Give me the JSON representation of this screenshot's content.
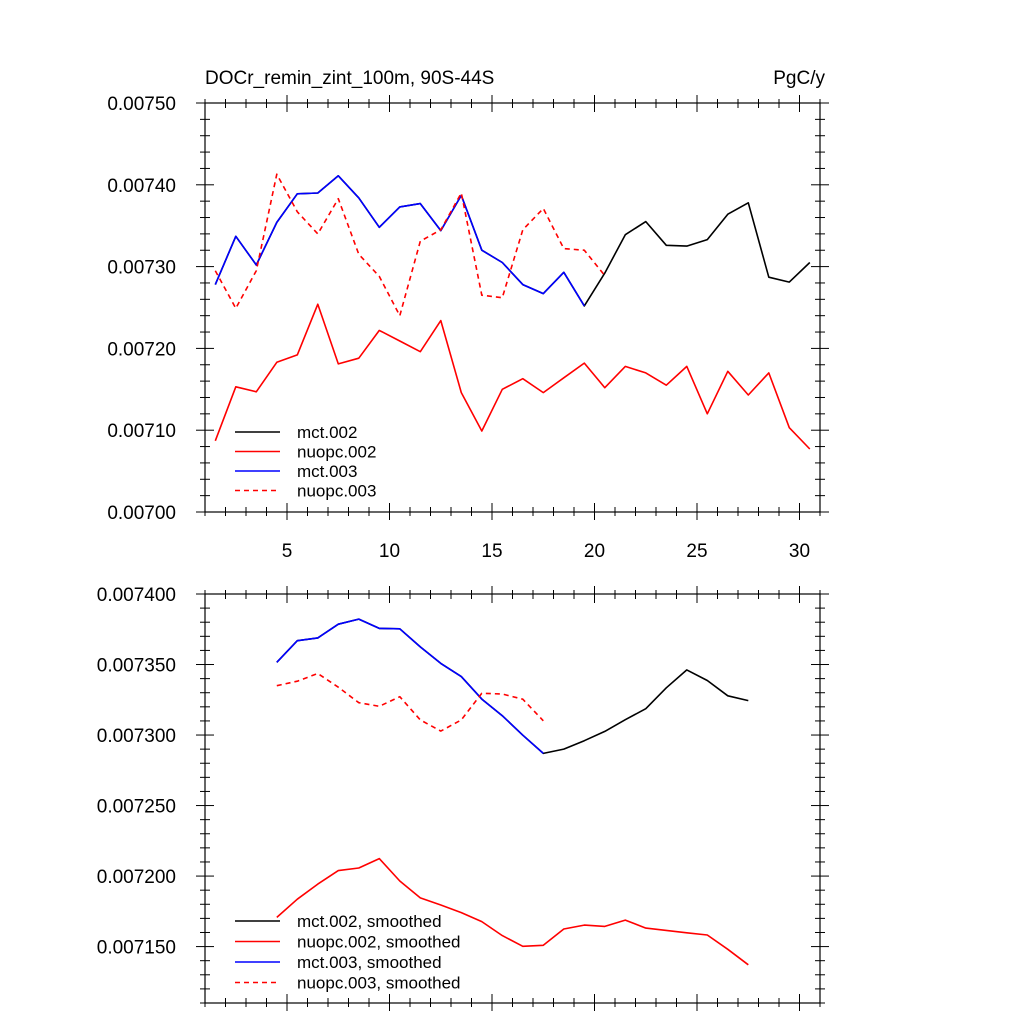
{
  "figure": {
    "title_left": "DOCr_remin_zint_100m, 90S-44S",
    "title_right": "PgC/y"
  },
  "chart_data": [
    {
      "type": "line",
      "title": "DOCr_remin_zint_100m, 90S-44S",
      "units": "PgC/y",
      "xlim": [
        1,
        31
      ],
      "ylim": [
        0.007,
        0.0075
      ],
      "x_ticks": [
        5,
        10,
        15,
        20,
        25,
        30
      ],
      "x_tick_labels": [
        "5",
        "10",
        "15",
        "20",
        "25",
        "30"
      ],
      "y_ticks": [
        0.007,
        0.0071,
        0.0072,
        0.0073,
        0.0074,
        0.0075
      ],
      "y_tick_labels": [
        "0.00700",
        "0.00710",
        "0.00720",
        "0.00730",
        "0.00740",
        "0.00750"
      ],
      "legend_position": "bottom-left",
      "series": [
        {
          "name": "mct.002",
          "color": "#000000",
          "dash": "solid",
          "x": [
            1.5,
            2.5,
            3.5,
            4.5,
            5.5,
            6.5,
            7.5,
            8.5,
            9.5,
            10.5,
            11.5,
            12.5,
            13.5,
            14.5,
            15.5,
            16.5,
            17.5,
            18.5,
            19.5,
            20.5,
            21.5,
            22.5,
            23.5,
            24.5,
            25.5,
            26.5,
            27.5,
            28.5,
            29.5,
            30.5
          ],
          "y": [
            0.007278,
            0.007337,
            0.007302,
            0.007354,
            0.007389,
            0.00739,
            0.007411,
            0.007384,
            0.007348,
            0.007373,
            0.007377,
            0.007344,
            0.007387,
            0.00732,
            0.007305,
            0.007278,
            0.007267,
            0.007293,
            0.007252,
            0.007292,
            0.007339,
            0.007355,
            0.007326,
            0.007325,
            0.007333,
            0.007364,
            0.007378,
            0.007287,
            0.007281,
            0.007305
          ]
        },
        {
          "name": "nuopc.002",
          "color": "#ff0000",
          "dash": "solid",
          "x": [
            1.5,
            2.5,
            3.5,
            4.5,
            5.5,
            6.5,
            7.5,
            8.5,
            9.5,
            10.5,
            11.5,
            12.5,
            13.5,
            14.5,
            15.5,
            16.5,
            17.5,
            18.5,
            19.5,
            20.5,
            21.5,
            22.5,
            23.5,
            24.5,
            25.5,
            26.5,
            27.5,
            28.5,
            29.5,
            30.5
          ],
          "y": [
            0.007087,
            0.007153,
            0.007147,
            0.007183,
            0.007192,
            0.007254,
            0.007181,
            0.007188,
            0.007222,
            0.007209,
            0.007196,
            0.007234,
            0.007146,
            0.007099,
            0.00715,
            0.007163,
            0.007146,
            0.007164,
            0.007182,
            0.007152,
            0.007178,
            0.00717,
            0.007155,
            0.007178,
            0.00712,
            0.007172,
            0.007143,
            0.00717,
            0.007103,
            0.007077
          ]
        },
        {
          "name": "mct.003",
          "color": "#0000ff",
          "dash": "solid",
          "x": [
            1.5,
            2.5,
            3.5,
            4.5,
            5.5,
            6.5,
            7.5,
            8.5,
            9.5,
            10.5,
            11.5,
            12.5,
            13.5,
            14.5,
            15.5,
            16.5,
            17.5,
            18.5,
            19.5
          ],
          "y": [
            0.007278,
            0.007337,
            0.007302,
            0.007354,
            0.007389,
            0.00739,
            0.007411,
            0.007384,
            0.007348,
            0.007373,
            0.007377,
            0.007344,
            0.007387,
            0.00732,
            0.007305,
            0.007278,
            0.007267,
            0.007293,
            0.007252
          ]
        },
        {
          "name": "nuopc.003",
          "color": "#ff0000",
          "dash": "dashed",
          "x": [
            1.5,
            2.5,
            3.5,
            4.5,
            5.5,
            6.5,
            7.5,
            8.5,
            9.5,
            10.5,
            11.5,
            12.5,
            13.5,
            14.5,
            15.5,
            16.5,
            17.5,
            18.5,
            19.5,
            20.5
          ],
          "y": [
            0.007295,
            0.007249,
            0.007295,
            0.007413,
            0.007367,
            0.00734,
            0.007383,
            0.007315,
            0.007288,
            0.00724,
            0.007331,
            0.007345,
            0.00739,
            0.007265,
            0.007262,
            0.007345,
            0.007371,
            0.007322,
            0.00732,
            0.007289
          ]
        }
      ]
    },
    {
      "type": "line",
      "xlim": [
        1,
        31
      ],
      "ylim": [
        0.00711,
        0.0074
      ],
      "x_ticks": [
        5,
        10,
        15,
        20,
        25,
        30
      ],
      "y_ticks": [
        0.00715,
        0.0072,
        0.00725,
        0.0073,
        0.00735,
        0.0074
      ],
      "y_tick_labels": [
        "0.007150",
        "0.007200",
        "0.007250",
        "0.007300",
        "0.007350",
        "0.007400"
      ],
      "legend_position": "bottom-left",
      "series": [
        {
          "name": "mct.002, smoothed",
          "color": "#000000",
          "dash": "solid",
          "x": [
            4.5,
            5.5,
            6.5,
            7.5,
            8.5,
            9.5,
            10.5,
            11.5,
            12.5,
            13.5,
            14.5,
            15.5,
            16.5,
            17.5,
            18.5,
            19.5,
            20.5,
            21.5,
            22.5,
            23.5,
            24.5,
            25.5,
            26.5,
            27.5
          ],
          "y": [
            0.0073516,
            0.0073669,
            0.0073689,
            0.0073786,
            0.0073822,
            0.0073756,
            0.0073753,
            0.0073625,
            0.0073508,
            0.0073414,
            0.0073255,
            0.0073137,
            0.0072999,
            0.007287,
            0.00729,
            0.007296,
            0.0073026,
            0.0073109,
            0.0073187,
            0.0073335,
            0.0073462,
            0.0073387,
            0.0073278,
            0.0073244
          ]
        },
        {
          "name": "nuopc.002, smoothed",
          "color": "#ff0000",
          "dash": "solid",
          "x": [
            4.5,
            5.5,
            6.5,
            7.5,
            8.5,
            9.5,
            10.5,
            11.5,
            12.5,
            13.5,
            14.5,
            15.5,
            16.5,
            17.5,
            18.5,
            19.5,
            20.5,
            21.5,
            22.5,
            23.5,
            24.5,
            25.5,
            26.5,
            27.5
          ],
          "y": [
            0.0071707,
            0.0071836,
            0.0071943,
            0.0072039,
            0.0072057,
            0.0072124,
            0.0071965,
            0.0071845,
            0.0071795,
            0.0071741,
            0.0071677,
            0.0071578,
            0.0071502,
            0.0071509,
            0.0071625,
            0.0071652,
            0.0071643,
            0.0071688,
            0.0071631,
            0.0071615,
            0.0071598,
            0.0071582,
            0.0071481,
            0.0071371
          ]
        },
        {
          "name": "mct.003, smoothed",
          "color": "#0000ff",
          "dash": "solid",
          "x": [
            4.5,
            5.5,
            6.5,
            7.5,
            8.5,
            9.5,
            10.5,
            11.5,
            12.5,
            13.5,
            14.5,
            15.5,
            16.5,
            17.5
          ],
          "y": [
            0.0073516,
            0.0073669,
            0.0073689,
            0.0073786,
            0.0073822,
            0.0073756,
            0.0073753,
            0.0073625,
            0.0073508,
            0.0073414,
            0.0073255,
            0.0073137,
            0.0072999,
            0.007287
          ]
        },
        {
          "name": "nuopc.003, smoothed",
          "color": "#ff0000",
          "dash": "dashed",
          "x": [
            4.5,
            5.5,
            6.5,
            7.5,
            8.5,
            9.5,
            10.5,
            11.5,
            12.5,
            13.5,
            14.5,
            15.5,
            16.5,
            17.5
          ],
          "y": [
            0.007335,
            0.0073382,
            0.0073436,
            0.0073339,
            0.0073229,
            0.0073204,
            0.0073272,
            0.0073107,
            0.0073028,
            0.0073107,
            0.0073296,
            0.0073291,
            0.0073254,
            0.0073101
          ]
        }
      ]
    }
  ]
}
